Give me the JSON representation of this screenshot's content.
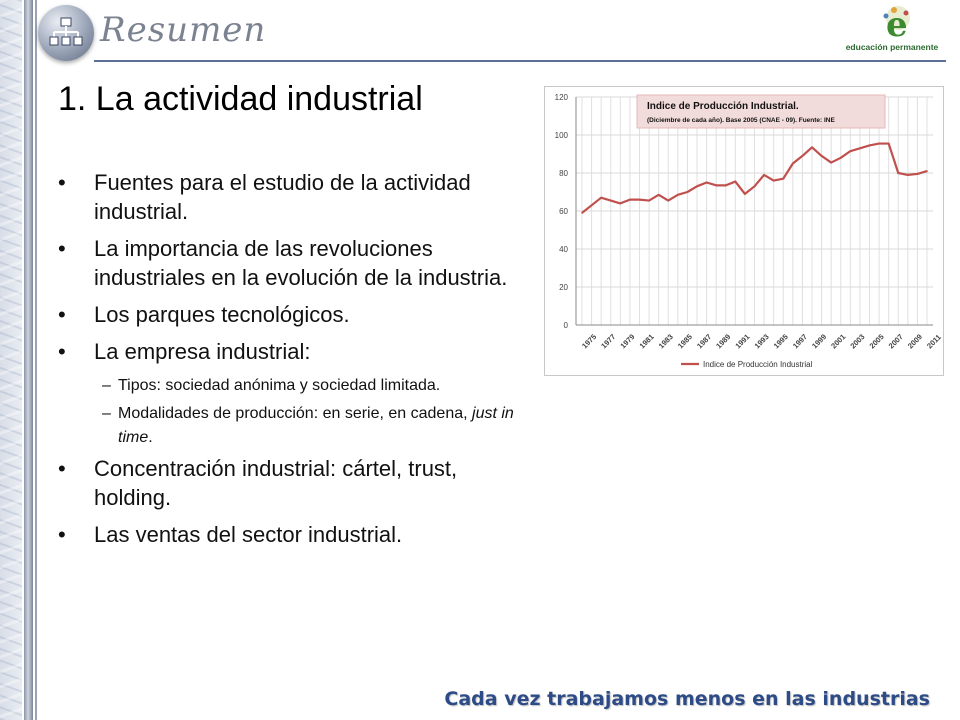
{
  "header": {
    "title": "Resumen",
    "logo_text": "educación permanente",
    "home_icon": "sitemap-icon"
  },
  "slide": {
    "title": "1. La actividad industrial",
    "bullets": [
      "Fuentes para el estudio de la actividad industrial.",
      "La importancia de las revoluciones industriales en la evolución de la industria.",
      "Los parques tecnológicos.",
      "La empresa industrial:"
    ],
    "sub_bullets": [
      "Tipos: sociedad anónima y sociedad limitada.",
      "Modalidades de producción: en serie, en cadena, "
    ],
    "sub_bullet_italic": "just in time",
    "sub_bullet_end": ".",
    "bullets_after": [
      "Concentración industrial: cártel, trust, holding.",
      "Las ventas del sector industrial."
    ]
  },
  "footer": {
    "text": "Cada vez trabajamos menos en las industrias"
  },
  "chart_data": {
    "type": "line",
    "title": "Indice de Producción Industrial.",
    "subtitle": "(Diciembre de cada año). Base 2005 (CNAE - 09). Fuente: INE",
    "legend": "top-left-inside",
    "grid": true,
    "ylim": [
      0,
      120
    ],
    "yticks": [
      0,
      20,
      40,
      60,
      80,
      100,
      120
    ],
    "xtick_labels": [
      "1975",
      "1977",
      "1979",
      "1981",
      "1983",
      "1985",
      "1987",
      "1989",
      "1991",
      "1993",
      "1995",
      "1997",
      "1999",
      "2001",
      "2003",
      "2005",
      "2007",
      "2009",
      "2011"
    ],
    "x": [
      1975,
      1976,
      1977,
      1978,
      1979,
      1980,
      1981,
      1982,
      1983,
      1984,
      1985,
      1986,
      1987,
      1988,
      1989,
      1990,
      1991,
      1992,
      1993,
      1994,
      1995,
      1996,
      1997,
      1998,
      1999,
      2000,
      2001,
      2002,
      2003,
      2004,
      2005,
      2006,
      2007,
      2008,
      2009,
      2010,
      2011
    ],
    "series": [
      {
        "name": "Indice de Producción Industrial",
        "color": "#c0504d",
        "values": [
          59,
          63,
          67,
          65.5,
          64,
          66,
          66,
          65.5,
          68.5,
          65.5,
          68.5,
          70,
          73,
          75,
          73.5,
          73.5,
          75.5,
          69,
          73,
          79,
          76,
          77,
          85,
          89,
          93.5,
          89,
          85.5,
          88,
          91.5,
          93,
          94.5,
          95.5,
          95.5,
          80,
          79,
          79.5,
          81
        ]
      }
    ]
  }
}
